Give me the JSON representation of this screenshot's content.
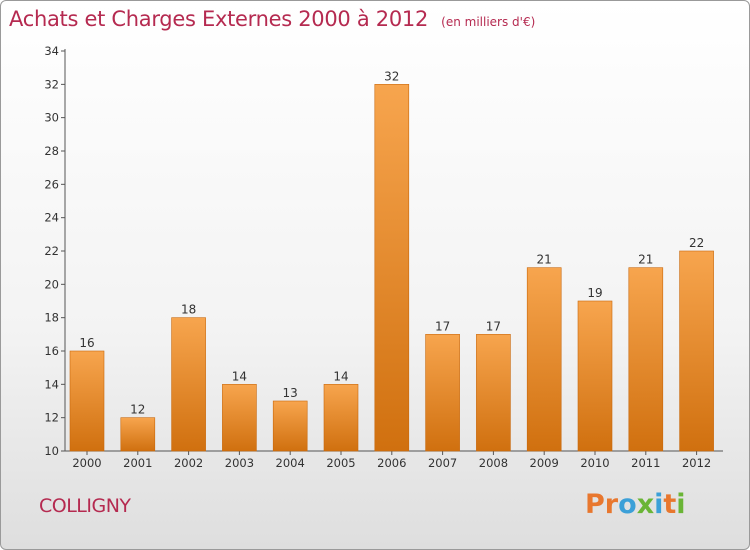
{
  "header": {
    "title": "Achats et Charges Externes 2000 à 2012",
    "subtitle": "(en milliers d'€)"
  },
  "footer": {
    "location": "COLLIGNY",
    "brand": "Proxiti"
  },
  "colors": {
    "title": "#b52a50",
    "bar_top": "#f7a54e",
    "bar_bottom": "#d0700f",
    "brand_letters": [
      "#e8772e",
      "#e8772e",
      "#3ca0d8",
      "#6ab536",
      "#3ca0d8",
      "#e8772e",
      "#6ab536"
    ]
  },
  "chart_data": {
    "type": "bar",
    "title": "Achats et Charges Externes 2000 à 2012",
    "subtitle": "(en milliers d'€)",
    "categories": [
      "2000",
      "2001",
      "2002",
      "2003",
      "2004",
      "2005",
      "2006",
      "2007",
      "2008",
      "2009",
      "2010",
      "2011",
      "2012"
    ],
    "values": [
      16,
      12,
      18,
      14,
      13,
      14,
      32,
      17,
      17,
      21,
      19,
      21,
      22
    ],
    "xlabel": "",
    "ylabel": "",
    "ylim": [
      10,
      34
    ],
    "yticks": [
      10,
      12,
      14,
      16,
      18,
      20,
      22,
      24,
      26,
      28,
      30,
      32,
      34
    ],
    "grid": false,
    "legend": "none"
  }
}
